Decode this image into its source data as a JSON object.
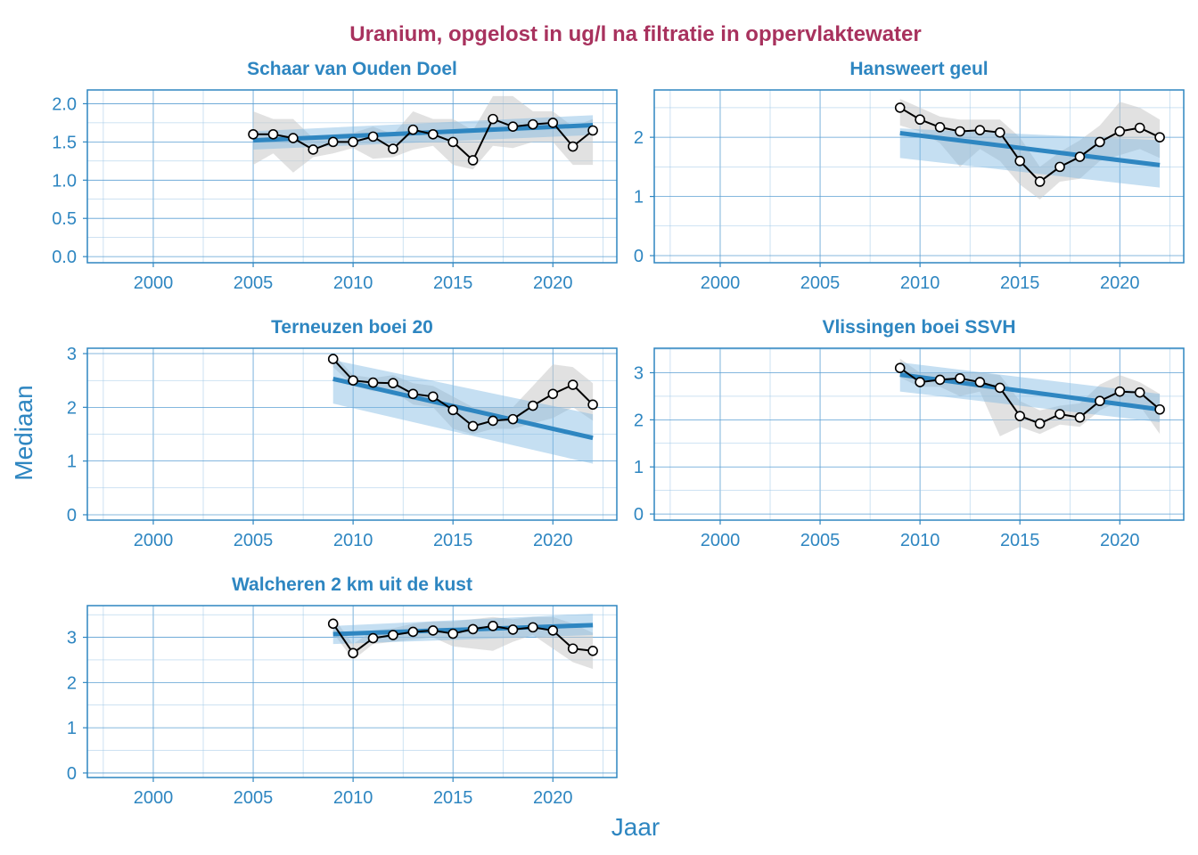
{
  "chart_data": {
    "type": "line",
    "title": "Uranium, opgelost in ug/l na filtratie in oppervlaktewater",
    "xlabel": "Jaar",
    "ylabel": "Mediaan",
    "xlim": [
      1996.7,
      2023.2
    ],
    "x_ticks": [
      2000,
      2005,
      2010,
      2015,
      2020
    ],
    "colors": {
      "title": "#a8325e",
      "axis": "#2e86c1",
      "trend": "#2e86c1",
      "series": "#000000",
      "band": "#c8c8c8",
      "ci": "#7fb7e2"
    },
    "panels": [
      {
        "title": "Schaar van Ouden Doel",
        "ylim": [
          -0.08,
          2.18
        ],
        "y_ticks": [
          0.0,
          0.5,
          1.0,
          1.5,
          2.0
        ],
        "y_tick_labels": [
          "0.0",
          "0.5",
          "1.0",
          "1.5",
          "2.0"
        ],
        "x": [
          2005,
          2006,
          2007,
          2008,
          2009,
          2010,
          2011,
          2012,
          2013,
          2014,
          2015,
          2016,
          2017,
          2018,
          2019,
          2020,
          2021,
          2022
        ],
        "values": [
          1.6,
          1.6,
          1.55,
          1.4,
          1.5,
          1.5,
          1.57,
          1.41,
          1.66,
          1.6,
          1.5,
          1.26,
          1.8,
          1.7,
          1.73,
          1.75,
          1.44,
          1.65
        ],
        "band_low": [
          1.2,
          1.35,
          1.1,
          1.3,
          1.35,
          1.42,
          1.28,
          1.3,
          1.4,
          1.45,
          1.2,
          1.14,
          1.45,
          1.42,
          1.5,
          1.5,
          1.2,
          1.2
        ],
        "band_high": [
          1.9,
          1.8,
          1.8,
          1.55,
          1.6,
          1.62,
          1.7,
          1.6,
          1.9,
          1.8,
          1.8,
          1.65,
          2.1,
          2.1,
          1.9,
          1.9,
          1.7,
          1.8
        ],
        "trend": [
          1.52,
          1.72
        ],
        "ci_low": [
          1.4,
          1.59
        ],
        "ci_high": [
          1.64,
          1.85
        ]
      },
      {
        "title": "Hansweert geul",
        "ylim": [
          -0.12,
          2.8
        ],
        "y_ticks": [
          0,
          1,
          2
        ],
        "y_tick_labels": [
          "0",
          "1",
          "2"
        ],
        "x": [
          2009,
          2010,
          2011,
          2012,
          2013,
          2014,
          2015,
          2016,
          2017,
          2018,
          2019,
          2020,
          2021,
          2022
        ],
        "values": [
          2.5,
          2.3,
          2.17,
          2.1,
          2.12,
          2.08,
          1.6,
          1.25,
          1.5,
          1.67,
          1.92,
          2.1,
          2.16,
          2.0
        ],
        "band_low": [
          2.2,
          2.1,
          1.9,
          1.5,
          1.8,
          1.6,
          1.2,
          0.95,
          1.25,
          1.3,
          1.6,
          1.7,
          1.8,
          1.65
        ],
        "band_high": [
          2.65,
          2.5,
          2.35,
          2.3,
          2.3,
          2.3,
          2.0,
          1.5,
          1.75,
          1.95,
          2.2,
          2.6,
          2.5,
          2.3
        ],
        "trend": [
          2.07,
          1.53
        ],
        "ci_low": [
          1.65,
          1.15
        ],
        "ci_high": [
          2.15,
          1.95
        ]
      },
      {
        "title": "Terneuzen boei 20",
        "ylim": [
          -0.1,
          3.1
        ],
        "y_ticks": [
          0,
          1,
          2,
          3
        ],
        "y_tick_labels": [
          "0",
          "1",
          "2",
          "3"
        ],
        "x": [
          2009,
          2010,
          2011,
          2012,
          2013,
          2014,
          2015,
          2016,
          2017,
          2018,
          2019,
          2020,
          2021,
          2022
        ],
        "values": [
          2.9,
          2.5,
          2.46,
          2.45,
          2.25,
          2.2,
          1.95,
          1.65,
          1.75,
          1.78,
          2.03,
          2.25,
          2.42,
          2.05
        ],
        "band_low": [
          2.75,
          2.4,
          2.3,
          2.3,
          2.05,
          2.0,
          1.6,
          1.5,
          1.6,
          1.6,
          1.7,
          1.8,
          2.0,
          1.75
        ],
        "band_high": [
          3.0,
          2.6,
          2.55,
          2.6,
          2.45,
          2.4,
          2.2,
          2.0,
          2.0,
          2.0,
          2.4,
          2.8,
          2.75,
          2.45
        ],
        "trend": [
          2.53,
          1.43
        ],
        "ci_low": [
          2.07,
          0.95
        ],
        "ci_high": [
          2.88,
          1.87
        ]
      },
      {
        "title": "Vlissingen boei SSVH",
        "ylim": [
          -0.13,
          3.52
        ],
        "y_ticks": [
          0,
          1,
          2,
          3
        ],
        "y_tick_labels": [
          "0",
          "1",
          "2",
          "3"
        ],
        "x": [
          2009,
          2010,
          2011,
          2012,
          2013,
          2014,
          2015,
          2016,
          2017,
          2018,
          2019,
          2020,
          2021,
          2022
        ],
        "values": [
          3.1,
          2.8,
          2.85,
          2.88,
          2.8,
          2.68,
          2.08,
          1.92,
          2.12,
          2.05,
          2.4,
          2.6,
          2.58,
          2.22
        ],
        "band_low": [
          2.9,
          2.7,
          2.7,
          2.5,
          2.6,
          1.65,
          1.85,
          1.7,
          1.9,
          1.85,
          2.2,
          2.4,
          2.3,
          1.7
        ],
        "band_high": [
          3.3,
          3.0,
          3.0,
          3.0,
          3.0,
          2.95,
          2.4,
          2.2,
          2.3,
          2.35,
          2.75,
          2.95,
          2.8,
          2.55
        ],
        "trend": [
          2.96,
          2.22
        ],
        "ci_low": [
          2.6,
          1.95
        ],
        "ci_high": [
          3.22,
          2.55
        ]
      },
      {
        "title": "Walcheren 2 km uit de kust",
        "ylim": [
          -0.1,
          3.7
        ],
        "y_ticks": [
          0,
          1,
          2,
          3
        ],
        "y_tick_labels": [
          "0",
          "1",
          "2",
          "3"
        ],
        "x": [
          2009,
          2010,
          2011,
          2012,
          2013,
          2014,
          2015,
          2016,
          2017,
          2018,
          2019,
          2020,
          2021,
          2022
        ],
        "values": [
          3.3,
          2.65,
          2.98,
          3.05,
          3.12,
          3.15,
          3.08,
          3.18,
          3.25,
          3.17,
          3.22,
          3.15,
          2.75,
          2.7
        ],
        "band_low": [
          3.1,
          2.5,
          2.85,
          2.9,
          2.95,
          3.0,
          2.8,
          2.75,
          2.7,
          2.9,
          3.05,
          2.75,
          2.45,
          2.3
        ],
        "band_high": [
          3.45,
          2.85,
          3.15,
          3.2,
          3.3,
          3.35,
          3.35,
          3.4,
          3.45,
          3.4,
          3.45,
          3.45,
          3.3,
          3.1
        ],
        "trend": [
          3.07,
          3.27
        ],
        "ci_low": [
          2.85,
          3.05
        ],
        "ci_high": [
          3.25,
          3.52
        ]
      }
    ]
  }
}
